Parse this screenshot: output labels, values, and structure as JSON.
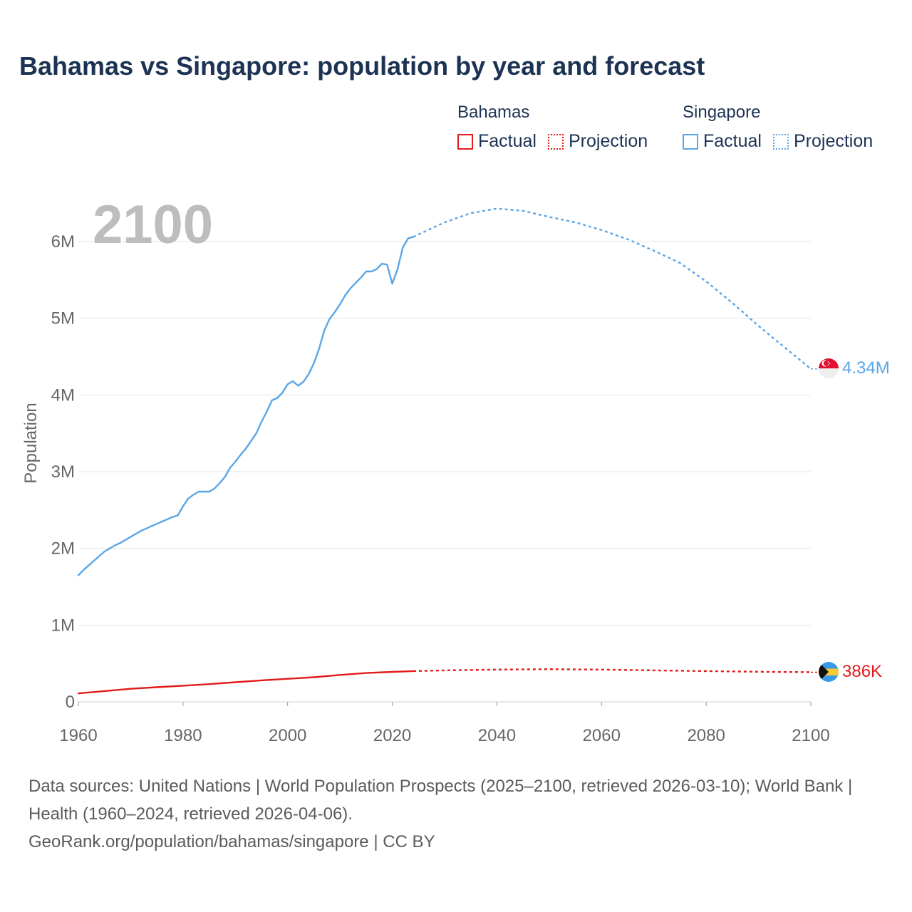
{
  "title": "Bahamas vs Singapore: population by year and forecast",
  "legend": [
    {
      "group": "Bahamas",
      "color": "#e31b1b",
      "factual_label": "Factual",
      "projection_label": "Projection"
    },
    {
      "group": "Singapore",
      "color": "#5aa6e6",
      "factual_label": "Factual",
      "projection_label": "Projection"
    }
  ],
  "footer": {
    "sources": "Data sources: United Nations | World Population Prospects (2025–2100, retrieved 2026-03-10); World Bank | Health (1960–2024, retrieved 2026-04-06).",
    "link": "GeoRank.org/population/bahamas/singapore | CC BY"
  },
  "chart_data": {
    "type": "line",
    "title": "Bahamas vs Singapore: population by year and forecast",
    "xlabel": "",
    "ylabel": "Population",
    "year_watermark": "2100",
    "xlim": [
      1960,
      2100
    ],
    "ylim": [
      0,
      6500000
    ],
    "x_ticks": [
      1960,
      1980,
      2000,
      2020,
      2040,
      2060,
      2080,
      2100
    ],
    "x_tick_labels": [
      "1960",
      "1980",
      "2000",
      "2020",
      "2040",
      "2060",
      "2080",
      "2100"
    ],
    "y_ticks": [
      0,
      1000000,
      2000000,
      3000000,
      4000000,
      5000000,
      6000000
    ],
    "y_tick_labels": [
      "0",
      "1M",
      "2M",
      "3M",
      "4M",
      "5M",
      "6M"
    ],
    "grid": true,
    "series": [
      {
        "name": "Bahamas",
        "color": "#e31b1b",
        "end_label": "386K",
        "flag": "bahamas-flag",
        "factual": [
          [
            1960,
            110000
          ],
          [
            1965,
            140000
          ],
          [
            1970,
            170000
          ],
          [
            1975,
            190000
          ],
          [
            1980,
            210000
          ],
          [
            1985,
            230000
          ],
          [
            1990,
            255000
          ],
          [
            1995,
            280000
          ],
          [
            2000,
            300000
          ],
          [
            2005,
            320000
          ],
          [
            2010,
            350000
          ],
          [
            2015,
            375000
          ],
          [
            2020,
            390000
          ],
          [
            2024,
            400000
          ]
        ],
        "projection": [
          [
            2024,
            400000
          ],
          [
            2030,
            410000
          ],
          [
            2040,
            420000
          ],
          [
            2050,
            425000
          ],
          [
            2060,
            420000
          ],
          [
            2070,
            410000
          ],
          [
            2080,
            400000
          ],
          [
            2090,
            392000
          ],
          [
            2100,
            386000
          ]
        ]
      },
      {
        "name": "Singapore",
        "color": "#5aa6e6",
        "end_label": "4.34M",
        "flag": "singapore-flag",
        "factual": [
          [
            1960,
            1650000
          ],
          [
            1961,
            1720000
          ],
          [
            1962,
            1780000
          ],
          [
            1963,
            1840000
          ],
          [
            1964,
            1900000
          ],
          [
            1965,
            1960000
          ],
          [
            1966,
            2000000
          ],
          [
            1967,
            2040000
          ],
          [
            1968,
            2070000
          ],
          [
            1969,
            2110000
          ],
          [
            1970,
            2150000
          ],
          [
            1971,
            2190000
          ],
          [
            1972,
            2230000
          ],
          [
            1973,
            2260000
          ],
          [
            1974,
            2290000
          ],
          [
            1975,
            2320000
          ],
          [
            1976,
            2350000
          ],
          [
            1977,
            2380000
          ],
          [
            1978,
            2410000
          ],
          [
            1979,
            2430000
          ],
          [
            1980,
            2550000
          ],
          [
            1981,
            2650000
          ],
          [
            1982,
            2700000
          ],
          [
            1983,
            2740000
          ],
          [
            1984,
            2740000
          ],
          [
            1985,
            2740000
          ],
          [
            1986,
            2780000
          ],
          [
            1987,
            2850000
          ],
          [
            1988,
            2930000
          ],
          [
            1989,
            3050000
          ],
          [
            1990,
            3130000
          ],
          [
            1991,
            3220000
          ],
          [
            1992,
            3300000
          ],
          [
            1993,
            3400000
          ],
          [
            1994,
            3500000
          ],
          [
            1995,
            3650000
          ],
          [
            1996,
            3780000
          ],
          [
            1997,
            3930000
          ],
          [
            1998,
            3960000
          ],
          [
            1999,
            4030000
          ],
          [
            2000,
            4140000
          ],
          [
            2001,
            4180000
          ],
          [
            2002,
            4120000
          ],
          [
            2003,
            4170000
          ],
          [
            2004,
            4270000
          ],
          [
            2005,
            4410000
          ],
          [
            2006,
            4600000
          ],
          [
            2007,
            4840000
          ],
          [
            2008,
            4990000
          ],
          [
            2009,
            5080000
          ],
          [
            2010,
            5180000
          ],
          [
            2011,
            5300000
          ],
          [
            2012,
            5390000
          ],
          [
            2013,
            5460000
          ],
          [
            2014,
            5530000
          ],
          [
            2015,
            5610000
          ],
          [
            2016,
            5610000
          ],
          [
            2017,
            5640000
          ],
          [
            2018,
            5710000
          ],
          [
            2019,
            5700000
          ],
          [
            2020,
            5450000
          ],
          [
            2021,
            5640000
          ],
          [
            2022,
            5920000
          ],
          [
            2023,
            6040000
          ],
          [
            2024,
            6060000
          ]
        ],
        "projection": [
          [
            2024,
            6060000
          ],
          [
            2030,
            6250000
          ],
          [
            2035,
            6370000
          ],
          [
            2040,
            6430000
          ],
          [
            2045,
            6400000
          ],
          [
            2050,
            6320000
          ],
          [
            2055,
            6250000
          ],
          [
            2060,
            6150000
          ],
          [
            2065,
            6030000
          ],
          [
            2070,
            5880000
          ],
          [
            2075,
            5720000
          ],
          [
            2080,
            5480000
          ],
          [
            2085,
            5200000
          ],
          [
            2090,
            4900000
          ],
          [
            2095,
            4620000
          ],
          [
            2100,
            4340000
          ]
        ]
      }
    ]
  }
}
